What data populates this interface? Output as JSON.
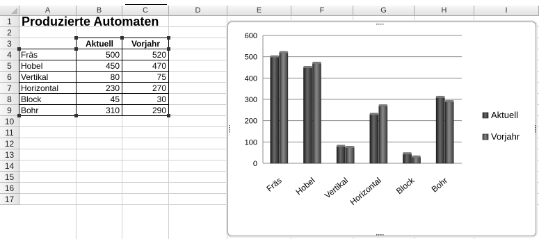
{
  "columns": [
    "A",
    "B",
    "C",
    "D",
    "E",
    "F",
    "G",
    "H",
    "I"
  ],
  "rows": [
    "1",
    "2",
    "3",
    "4",
    "5",
    "6",
    "7",
    "8",
    "9",
    "10",
    "11",
    "12",
    "13",
    "14",
    "15",
    "16",
    "17"
  ],
  "sheet": {
    "title": "Produzierte Automaten",
    "header_current": "Aktuell",
    "header_previous": "Vorjahr",
    "records": [
      {
        "name": "Fräs",
        "current": "500",
        "previous": "520"
      },
      {
        "name": "Hobel",
        "current": "450",
        "previous": "470"
      },
      {
        "name": "Vertikal",
        "current": "80",
        "previous": "75"
      },
      {
        "name": "Horizontal",
        "current": "230",
        "previous": "270"
      },
      {
        "name": "Block",
        "current": "45",
        "previous": "30"
      },
      {
        "name": "Bohr",
        "current": "310",
        "previous": "290"
      }
    ]
  },
  "colors": {
    "bar_current": "#3a3a3a",
    "bar_previous": "#555555",
    "gridline": "#8c8c8c"
  },
  "chart_data": {
    "type": "bar",
    "categories": [
      "Fräs",
      "Hobel",
      "Vertikal",
      "Horizontal",
      "Block",
      "Bohr"
    ],
    "series": [
      {
        "name": "Aktuell",
        "values": [
          500,
          450,
          80,
          230,
          45,
          310
        ]
      },
      {
        "name": "Vorjahr",
        "values": [
          520,
          470,
          75,
          270,
          30,
          290
        ]
      }
    ],
    "ylim": [
      0,
      600
    ],
    "yticks": [
      "0",
      "100",
      "200",
      "300",
      "400",
      "500",
      "600"
    ],
    "grid": true,
    "legend": "right",
    "title": "",
    "xlabel": "",
    "ylabel": ""
  }
}
